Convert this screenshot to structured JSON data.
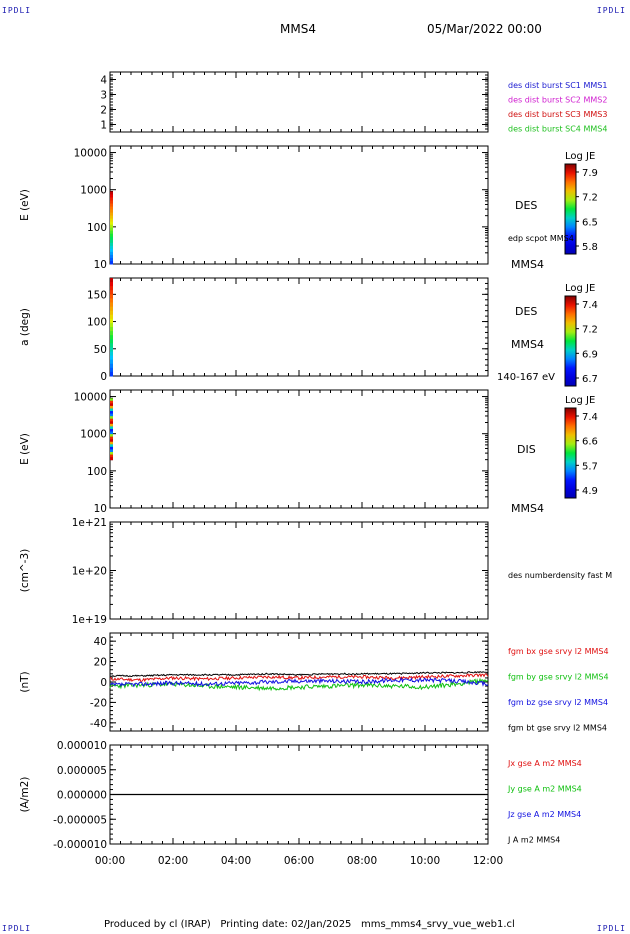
{
  "header": {
    "corner_tl": "IPDLI",
    "corner_tr": "IPDLI",
    "corner_bl": "IPDLI",
    "corner_br": "IPDLI",
    "spacecraft": "MMS4",
    "date": "05/Mar/2022 00:00"
  },
  "footer": {
    "produced_by": "Produced by cl (IRAP)",
    "printing_date": "Printing date: 02/Jan/2025",
    "file_name": "mms_mms4_srvy_vue_web1.cl"
  },
  "chart_data": [
    {
      "type": "line",
      "panel": "burst",
      "ylim": [
        0.5,
        4.5
      ],
      "yticks": [
        "1",
        "2",
        "3",
        "4"
      ],
      "ylabel": "",
      "legend": [
        {
          "name": "des dist burst SC1 MMS1",
          "color": "#1a1ad0"
        },
        {
          "name": "des dist burst SC2 MMS2",
          "color": "#d020d0"
        },
        {
          "name": "des dist burst SC3 MMS3",
          "color": "#d01010"
        },
        {
          "name": "des dist burst SC4 MMS4",
          "color": "#20c020"
        }
      ],
      "series": []
    },
    {
      "type": "heatmap",
      "panel": "des_energy",
      "ylabel": "E (eV)",
      "yscale": "log",
      "ylim": [
        10,
        15000
      ],
      "yticks": [
        "10",
        "100",
        "1000",
        "10000"
      ],
      "right_labels": [
        "DES",
        "edp scpot MMS4",
        "MMS4"
      ],
      "colorbar": {
        "title": "Log JE",
        "ticks": [
          "7.9",
          "7.2",
          "6.5",
          "5.8"
        ]
      },
      "data_strip": {
        "x_start": "00:00",
        "x_end": "00:04",
        "y_range": [
          10,
          900
        ]
      }
    },
    {
      "type": "heatmap",
      "panel": "des_pitch",
      "ylabel": "a (deg)",
      "ylim": [
        0,
        180
      ],
      "yticks": [
        "0",
        "50",
        "100",
        "150"
      ],
      "right_labels": [
        "DES",
        "MMS4",
        "140-167 eV"
      ],
      "colorbar": {
        "title": "Log JE",
        "ticks": [
          "7.4",
          "7.2",
          "6.9",
          "6.7"
        ]
      },
      "data_strip": {
        "x_start": "00:00",
        "x_end": "00:04",
        "y_range": [
          0,
          180
        ]
      }
    },
    {
      "type": "heatmap",
      "panel": "dis_energy",
      "ylabel": "E (eV)",
      "yscale": "log",
      "ylim": [
        10,
        15000
      ],
      "yticks": [
        "10",
        "100",
        "1000",
        "10000"
      ],
      "right_labels": [
        "DIS",
        "MMS4"
      ],
      "colorbar": {
        "title": "Log JE",
        "ticks": [
          "7.4",
          "6.6",
          "5.7",
          "4.9"
        ]
      },
      "data_strip": {
        "x_start": "00:00",
        "x_end": "00:04",
        "y_range": [
          200,
          9000
        ]
      }
    },
    {
      "type": "line",
      "panel": "density",
      "ylabel": "(cm^-3)",
      "yscale": "log",
      "ylim": [
        1e+19,
        1e+21
      ],
      "yticks": [
        "1e+19",
        "1e+20",
        "1e+21"
      ],
      "legend": [
        {
          "name": "des numberdensity fast M",
          "color": "#000000"
        }
      ],
      "series": []
    },
    {
      "type": "line",
      "panel": "fgm",
      "ylabel": "(nT)",
      "ylim": [
        -48,
        48
      ],
      "yticks": [
        "-40",
        "-20",
        "0",
        "20",
        "40"
      ],
      "x": [
        0,
        1,
        2,
        3,
        4,
        5,
        6,
        7,
        8,
        9,
        10,
        11,
        12
      ],
      "series": [
        {
          "name": "fgm bx gse srvy l2 MMS4",
          "color": "#e01010",
          "values": [
            3,
            2,
            4,
            3,
            4,
            5,
            4,
            5,
            5,
            4,
            5,
            6,
            7
          ],
          "noise": 1.5,
          "seed": 11
        },
        {
          "name": "fgm by gse srvy l2 MMS4",
          "color": "#10c010",
          "values": [
            -4,
            -3,
            -2,
            -4,
            -5,
            -6,
            -5,
            -4,
            -3,
            -4,
            -5,
            -2,
            2
          ],
          "noise": 2.2,
          "seed": 23
        },
        {
          "name": "fgm bz gse srvy l2 MMS4",
          "color": "#1010e0",
          "values": [
            -3,
            -2,
            -1,
            -2,
            -1,
            0,
            1,
            1,
            0,
            2,
            2,
            1,
            -2
          ],
          "noise": 2.0,
          "seed": 37
        },
        {
          "name": "fgm bt gse srvy l2 MMS4",
          "color": "#000000",
          "values": [
            6,
            6,
            7,
            7,
            7,
            8,
            7,
            8,
            8,
            8,
            9,
            9,
            10
          ],
          "noise": 0.7,
          "seed": 51
        }
      ]
    },
    {
      "type": "line",
      "panel": "current",
      "ylabel": "(A/m2)",
      "ylim": [
        -1e-05,
        1e-05
      ],
      "yticks": [
        "-0.000010",
        "-0.000005",
        "0.000000",
        "0.000005",
        "0.000010"
      ],
      "legend": [
        {
          "name": "Jx gse A m2 MMS4",
          "color": "#e01010"
        },
        {
          "name": "Jy gse A m2 MMS4",
          "color": "#10c010"
        },
        {
          "name": "Jz gse A m2 MMS4",
          "color": "#1010e0"
        },
        {
          "name": "J A m2 MMS4",
          "color": "#000000"
        }
      ],
      "series": [
        {
          "name": "J A m2 MMS4",
          "color": "#000000",
          "x": [
            0,
            12
          ],
          "values": [
            0,
            0
          ]
        }
      ]
    }
  ],
  "xaxis": {
    "ticks": [
      "00:00",
      "02:00",
      "04:00",
      "06:00",
      "08:00",
      "10:00",
      "12:00"
    ],
    "range": [
      0,
      12
    ]
  }
}
